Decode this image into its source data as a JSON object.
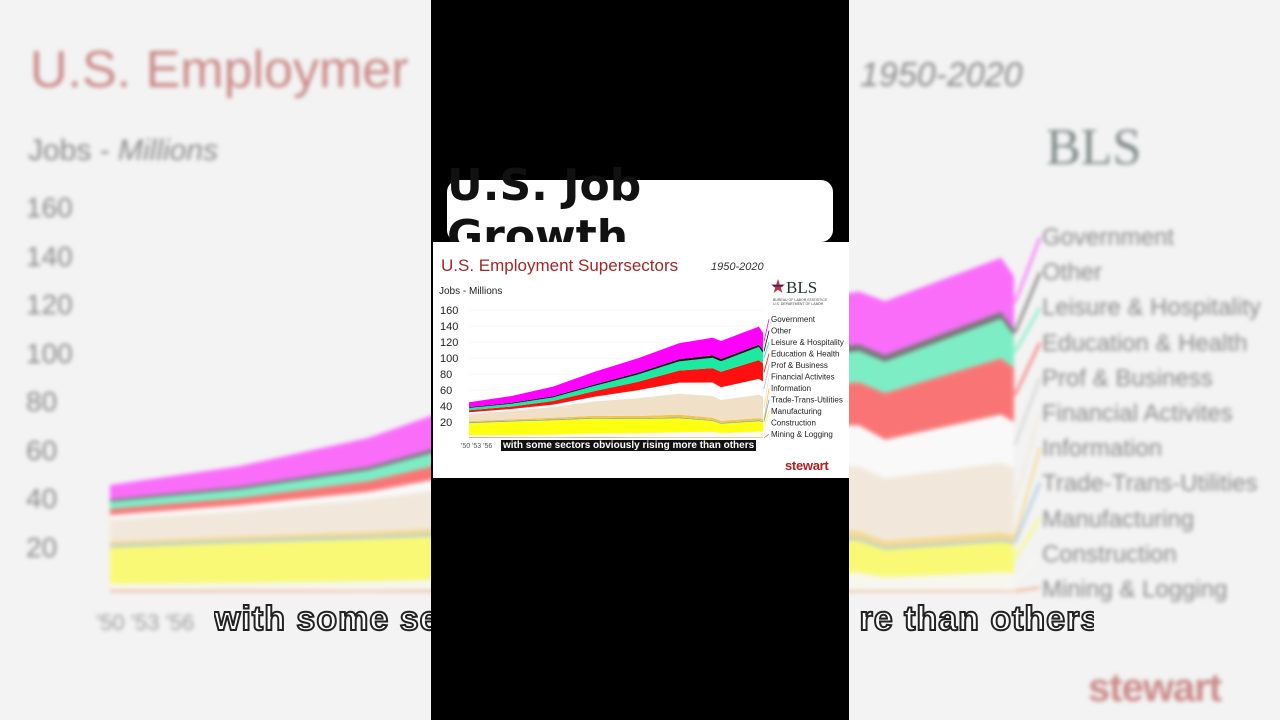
{
  "headline": "U.S. Job Growth",
  "caption": "with some sectors obviously rising more than others",
  "brand": "stewart",
  "logo": {
    "text": "BLS",
    "subtitle_1": "BUREAU OF LABOR STATISTICS",
    "subtitle_2": "U.S. DEPARTMENT OF LABOR",
    "icon": "star-eagle-icon"
  },
  "background_slide": {
    "title": "U.S. Employmer",
    "years": "1950-2020",
    "jobs_label": "Jobs - ",
    "jobs_unit": "Millions",
    "yticks": [
      "160",
      "140",
      "120",
      "100",
      "80",
      "60",
      "40",
      "20"
    ],
    "xticks": "'50 '53 '56",
    "caption_visible": "with some se",
    "caption_tail": "re than others",
    "legend": [
      "Government",
      "Other",
      "Leisure & Hospitality",
      "Education & Health",
      "Prof & Business",
      "Financial Activites",
      "Information",
      "Trade-Trans-Utilities",
      "Manufacturing",
      "Construction",
      "Mining & Logging"
    ]
  },
  "colors": {
    "title_red": "#a02828",
    "government": "#ff00ff",
    "other": "#111111",
    "leisure": "#1de9a0",
    "education": "#ff1010",
    "prof": "#ffffff",
    "financial": "#f0e0c8",
    "information": "#f5c542",
    "trade": "#6fa6d6",
    "manufacturing": "#ffff10",
    "construction": "#fbfbef",
    "mining": "#e8803a"
  },
  "chart_data": {
    "type": "area",
    "title": "U.S. Employment Supersectors",
    "subtitle": "1950-2020",
    "ylabel": "Jobs - Millions",
    "ylim": [
      0,
      160
    ],
    "yticks": [
      20,
      40,
      60,
      80,
      100,
      120,
      140,
      160
    ],
    "xtick_labels": "'50 '53 '56",
    "x": [
      1950,
      1960,
      1970,
      1980,
      1990,
      2000,
      2008,
      2010,
      2019,
      2020
    ],
    "series": [
      {
        "name": "Mining & Logging",
        "color": "#e8803a",
        "values": [
          1.0,
          0.9,
          0.8,
          1.1,
          0.8,
          0.6,
          0.8,
          0.7,
          0.7,
          0.6
        ]
      },
      {
        "name": "Construction",
        "color": "#fbfbef",
        "values": [
          2.4,
          2.9,
          3.6,
          4.5,
          5.3,
          6.8,
          7.2,
          5.5,
          7.5,
          7.3
        ]
      },
      {
        "name": "Manufacturing",
        "color": "#ffff10",
        "values": [
          15.2,
          16.8,
          17.8,
          18.7,
          17.7,
          17.3,
          13.4,
          11.5,
          12.8,
          12.2
        ]
      },
      {
        "name": "Trade-Trans-Utilities",
        "color": "#6fa6d6",
        "values": [
          1.0,
          1.0,
          1.0,
          1.0,
          1.0,
          1.0,
          1.0,
          1.0,
          1.0,
          1.0
        ]
      },
      {
        "name": "Information",
        "color": "#f5c542",
        "values": [
          1.5,
          1.6,
          2.0,
          2.4,
          2.7,
          3.6,
          3.0,
          2.7,
          2.9,
          2.7
        ]
      },
      {
        "name": "Financial Activites",
        "color": "#f0e0c8",
        "values": [
          9.0,
          10.5,
          13.5,
          18.0,
          22.0,
          26.0,
          27.0,
          26.0,
          29.0,
          28.0
        ]
      },
      {
        "name": "Prof & Business",
        "color": "#ffffff",
        "values": [
          2.0,
          2.5,
          3.0,
          6.0,
          10.0,
          14.0,
          17.0,
          16.0,
          20.0,
          19.0
        ]
      },
      {
        "name": "Education & Health",
        "color": "#ff1010",
        "values": [
          2.5,
          3.0,
          4.5,
          7.0,
          10.5,
          15.0,
          18.0,
          19.5,
          23.5,
          22.5
        ]
      },
      {
        "name": "Leisure & Hospitality",
        "color": "#1de9a0",
        "values": [
          3.0,
          3.5,
          4.5,
          6.5,
          9.0,
          11.5,
          13.0,
          13.0,
          16.5,
          13.5
        ]
      },
      {
        "name": "Other",
        "color": "#111111",
        "values": [
          1.0,
          1.2,
          1.5,
          1.8,
          2.3,
          2.6,
          2.8,
          2.8,
          2.9,
          2.7
        ]
      },
      {
        "name": "Government",
        "color": "#ff00ff",
        "values": [
          6.0,
          8.5,
          12.0,
          16.0,
          18.0,
          20.0,
          22.0,
          22.5,
          22.5,
          22.0
        ]
      }
    ],
    "legend_position": "right"
  }
}
